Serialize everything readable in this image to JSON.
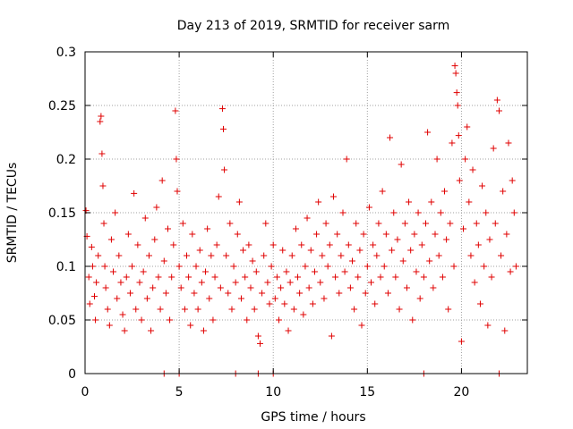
{
  "chart_data": {
    "type": "scatter",
    "title": "Day 213 of 2019, SRMTID for receiver sarm",
    "xlabel": "GPS time / hours",
    "ylabel": "SRMTID / TECUs",
    "xlim": [
      0,
      23.5
    ],
    "ylim": [
      0,
      0.3
    ],
    "grid": true,
    "x_ticks": [
      0,
      5,
      10,
      15,
      20
    ],
    "x_tick_labels": [
      "0",
      "5",
      "10",
      "15",
      "20"
    ],
    "y_ticks": [
      0,
      0.05,
      0.1,
      0.15,
      0.2,
      0.25,
      0.3
    ],
    "y_tick_labels": [
      "0",
      "0.05",
      "0.1",
      "0.15",
      "0.2",
      "0.25",
      "0.3"
    ],
    "marker": "+",
    "color": "#e00000",
    "series": [
      {
        "name": "SRMTID",
        "points": [
          [
            0.05,
            0.152
          ],
          [
            0.1,
            0.128
          ],
          [
            0.2,
            0.09
          ],
          [
            0.25,
            0.065
          ],
          [
            0.35,
            0.118
          ],
          [
            0.4,
            0.1
          ],
          [
            0.5,
            0.072
          ],
          [
            0.55,
            0.05
          ],
          [
            0.6,
            0.085
          ],
          [
            0.7,
            0.11
          ],
          [
            0.8,
            0.235
          ],
          [
            0.85,
            0.24
          ],
          [
            0.9,
            0.205
          ],
          [
            0.95,
            0.175
          ],
          [
            1.0,
            0.14
          ],
          [
            1.05,
            0.1
          ],
          [
            1.1,
            0.08
          ],
          [
            1.2,
            0.06
          ],
          [
            1.3,
            0.045
          ],
          [
            1.4,
            0.125
          ],
          [
            1.5,
            0.095
          ],
          [
            1.6,
            0.15
          ],
          [
            1.7,
            0.07
          ],
          [
            1.8,
            0.11
          ],
          [
            1.9,
            0.085
          ],
          [
            2.0,
            0.055
          ],
          [
            2.1,
            0.04
          ],
          [
            2.2,
            0.09
          ],
          [
            2.3,
            0.13
          ],
          [
            2.4,
            0.075
          ],
          [
            2.5,
            0.1
          ],
          [
            2.6,
            0.168
          ],
          [
            2.7,
            0.06
          ],
          [
            2.8,
            0.12
          ],
          [
            2.9,
            0.085
          ],
          [
            3.0,
            0.05
          ],
          [
            3.1,
            0.095
          ],
          [
            3.2,
            0.145
          ],
          [
            3.3,
            0.07
          ],
          [
            3.4,
            0.11
          ],
          [
            3.5,
            0.04
          ],
          [
            3.6,
            0.08
          ],
          [
            3.7,
            0.125
          ],
          [
            3.8,
            0.155
          ],
          [
            3.9,
            0.09
          ],
          [
            4.0,
            0.06
          ],
          [
            4.1,
            0.18
          ],
          [
            4.2,
            0.105
          ],
          [
            4.3,
            0.075
          ],
          [
            4.4,
            0.135
          ],
          [
            4.5,
            0.05
          ],
          [
            4.6,
            0.09
          ],
          [
            4.7,
            0.12
          ],
          [
            4.8,
            0.245
          ],
          [
            4.85,
            0.2
          ],
          [
            4.9,
            0.17
          ],
          [
            5.0,
            0.1
          ],
          [
            5.1,
            0.08
          ],
          [
            5.2,
            0.14
          ],
          [
            5.3,
            0.06
          ],
          [
            5.4,
            0.11
          ],
          [
            5.5,
            0.09
          ],
          [
            5.6,
            0.045
          ],
          [
            5.7,
            0.13
          ],
          [
            5.8,
            0.075
          ],
          [
            5.9,
            0.1
          ],
          [
            6.0,
            0.06
          ],
          [
            6.1,
            0.115
          ],
          [
            6.2,
            0.085
          ],
          [
            6.3,
            0.04
          ],
          [
            6.4,
            0.095
          ],
          [
            6.5,
            0.135
          ],
          [
            6.6,
            0.07
          ],
          [
            6.7,
            0.11
          ],
          [
            6.8,
            0.05
          ],
          [
            6.9,
            0.09
          ],
          [
            7.0,
            0.12
          ],
          [
            7.1,
            0.165
          ],
          [
            7.2,
            0.08
          ],
          [
            7.3,
            0.247
          ],
          [
            7.35,
            0.228
          ],
          [
            7.4,
            0.19
          ],
          [
            7.5,
            0.11
          ],
          [
            7.6,
            0.075
          ],
          [
            7.7,
            0.14
          ],
          [
            7.8,
            0.06
          ],
          [
            7.9,
            0.1
          ],
          [
            8.0,
            0.085
          ],
          [
            8.1,
            0.13
          ],
          [
            8.2,
            0.16
          ],
          [
            8.3,
            0.07
          ],
          [
            8.4,
            0.115
          ],
          [
            8.5,
            0.09
          ],
          [
            8.6,
            0.05
          ],
          [
            8.7,
            0.12
          ],
          [
            8.8,
            0.08
          ],
          [
            8.9,
            0.105
          ],
          [
            9.0,
            0.06
          ],
          [
            9.1,
            0.095
          ],
          [
            9.2,
            0.035
          ],
          [
            9.3,
            0.028
          ],
          [
            9.4,
            0.075
          ],
          [
            9.5,
            0.11
          ],
          [
            9.6,
            0.14
          ],
          [
            9.7,
            0.085
          ],
          [
            9.8,
            0.065
          ],
          [
            9.9,
            0.1
          ],
          [
            10.0,
            0.12
          ],
          [
            10.1,
            0.07
          ],
          [
            10.2,
            0.09
          ],
          [
            10.3,
            0.05
          ],
          [
            10.4,
            0.08
          ],
          [
            10.5,
            0.115
          ],
          [
            10.6,
            0.065
          ],
          [
            10.7,
            0.095
          ],
          [
            10.8,
            0.04
          ],
          [
            10.9,
            0.085
          ],
          [
            11.0,
            0.11
          ],
          [
            11.1,
            0.06
          ],
          [
            11.2,
            0.135
          ],
          [
            11.3,
            0.09
          ],
          [
            11.4,
            0.075
          ],
          [
            11.5,
            0.12
          ],
          [
            11.6,
            0.055
          ],
          [
            11.7,
            0.1
          ],
          [
            11.8,
            0.145
          ],
          [
            11.9,
            0.08
          ],
          [
            12.0,
            0.115
          ],
          [
            12.1,
            0.065
          ],
          [
            12.2,
            0.095
          ],
          [
            12.3,
            0.13
          ],
          [
            12.4,
            0.16
          ],
          [
            12.5,
            0.085
          ],
          [
            12.6,
            0.11
          ],
          [
            12.7,
            0.07
          ],
          [
            12.8,
            0.14
          ],
          [
            12.9,
            0.1
          ],
          [
            13.0,
            0.12
          ],
          [
            13.1,
            0.035
          ],
          [
            13.2,
            0.165
          ],
          [
            13.3,
            0.09
          ],
          [
            13.4,
            0.13
          ],
          [
            13.5,
            0.075
          ],
          [
            13.6,
            0.11
          ],
          [
            13.7,
            0.15
          ],
          [
            13.8,
            0.095
          ],
          [
            13.9,
            0.2
          ],
          [
            14.0,
            0.12
          ],
          [
            14.1,
            0.08
          ],
          [
            14.2,
            0.105
          ],
          [
            14.3,
            0.06
          ],
          [
            14.4,
            0.14
          ],
          [
            14.5,
            0.09
          ],
          [
            14.6,
            0.115
          ],
          [
            14.7,
            0.045
          ],
          [
            14.8,
            0.13
          ],
          [
            14.9,
            0.075
          ],
          [
            15.0,
            0.1
          ],
          [
            15.1,
            0.155
          ],
          [
            15.2,
            0.085
          ],
          [
            15.3,
            0.12
          ],
          [
            15.4,
            0.065
          ],
          [
            15.5,
            0.11
          ],
          [
            15.6,
            0.14
          ],
          [
            15.7,
            0.09
          ],
          [
            15.8,
            0.17
          ],
          [
            15.9,
            0.1
          ],
          [
            16.0,
            0.13
          ],
          [
            16.1,
            0.075
          ],
          [
            16.2,
            0.22
          ],
          [
            16.3,
            0.115
          ],
          [
            16.4,
            0.15
          ],
          [
            16.5,
            0.09
          ],
          [
            16.6,
            0.125
          ],
          [
            16.7,
            0.06
          ],
          [
            16.8,
            0.195
          ],
          [
            16.9,
            0.105
          ],
          [
            17.0,
            0.14
          ],
          [
            17.1,
            0.08
          ],
          [
            17.2,
            0.16
          ],
          [
            17.3,
            0.115
          ],
          [
            17.4,
            0.05
          ],
          [
            17.5,
            0.13
          ],
          [
            17.6,
            0.095
          ],
          [
            17.7,
            0.15
          ],
          [
            17.8,
            0.07
          ],
          [
            17.9,
            0.12
          ],
          [
            18.0,
            0.09
          ],
          [
            18.1,
            0.14
          ],
          [
            18.2,
            0.225
          ],
          [
            18.3,
            0.105
          ],
          [
            18.4,
            0.16
          ],
          [
            18.5,
            0.08
          ],
          [
            18.6,
            0.13
          ],
          [
            18.7,
            0.2
          ],
          [
            18.8,
            0.11
          ],
          [
            18.9,
            0.15
          ],
          [
            19.0,
            0.09
          ],
          [
            19.1,
            0.17
          ],
          [
            19.2,
            0.125
          ],
          [
            19.3,
            0.06
          ],
          [
            19.4,
            0.14
          ],
          [
            19.5,
            0.215
          ],
          [
            19.6,
            0.1
          ],
          [
            19.65,
            0.287
          ],
          [
            19.7,
            0.28
          ],
          [
            19.75,
            0.262
          ],
          [
            19.8,
            0.25
          ],
          [
            19.85,
            0.222
          ],
          [
            19.9,
            0.18
          ],
          [
            20.0,
            0.03
          ],
          [
            20.1,
            0.135
          ],
          [
            20.2,
            0.2
          ],
          [
            20.3,
            0.23
          ],
          [
            20.4,
            0.16
          ],
          [
            20.5,
            0.11
          ],
          [
            20.6,
            0.19
          ],
          [
            20.7,
            0.085
          ],
          [
            20.8,
            0.14
          ],
          [
            20.9,
            0.12
          ],
          [
            21.0,
            0.065
          ],
          [
            21.1,
            0.175
          ],
          [
            21.2,
            0.1
          ],
          [
            21.3,
            0.15
          ],
          [
            21.4,
            0.045
          ],
          [
            21.5,
            0.125
          ],
          [
            21.6,
            0.09
          ],
          [
            21.7,
            0.21
          ],
          [
            21.8,
            0.14
          ],
          [
            21.9,
            0.255
          ],
          [
            22.0,
            0.245
          ],
          [
            22.1,
            0.11
          ],
          [
            22.2,
            0.17
          ],
          [
            22.3,
            0.04
          ],
          [
            22.4,
            0.13
          ],
          [
            22.5,
            0.215
          ],
          [
            22.6,
            0.095
          ],
          [
            22.7,
            0.18
          ],
          [
            22.8,
            0.15
          ],
          [
            22.9,
            0.1
          ]
        ]
      }
    ],
    "zero_markers_x": [
      4.2,
      5.0,
      8.0,
      9.2,
      10.0,
      18.0,
      22.0
    ]
  }
}
